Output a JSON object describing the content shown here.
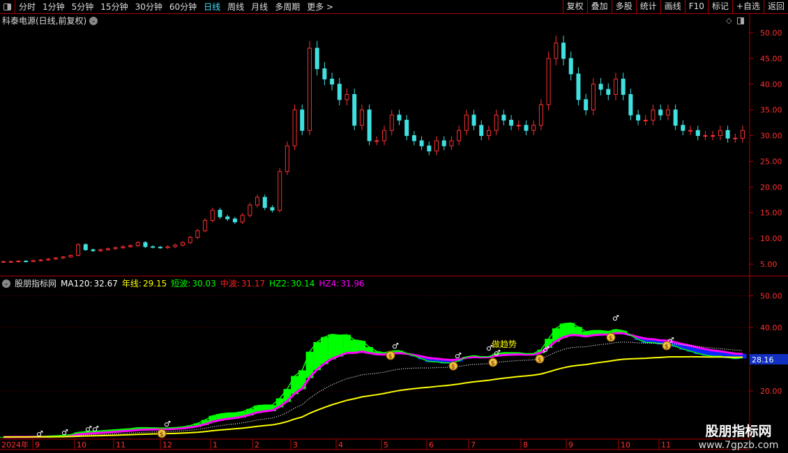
{
  "toolbar": {
    "periods": [
      "分时",
      "1分钟",
      "5分钟",
      "15分钟",
      "30分钟",
      "60分钟",
      "日线",
      "周线",
      "月线",
      "多周期",
      "更多 >"
    ],
    "active_period": "日线",
    "actions": [
      "复权",
      "叠加",
      "多股",
      "统计",
      "画线",
      "F10",
      "标记",
      "+自选",
      "返回"
    ]
  },
  "chart_title": "科泰电源(日线,前复权)",
  "price_axis": {
    "ticks": [
      "50.00",
      "45.00",
      "40.00",
      "35.00",
      "30.00",
      "25.00",
      "20.00",
      "15.00",
      "10.00",
      "5.00"
    ]
  },
  "indicator": {
    "name": "股朋指标网",
    "values": [
      {
        "label": "MA120:",
        "value": "32.67",
        "color": "#ffffff"
      },
      {
        "label": "年线:",
        "value": "29.15",
        "color": "#ffff00"
      },
      {
        "label": "短波:",
        "value": "30.03",
        "color": "#00ff00"
      },
      {
        "label": "中波:",
        "value": "31.17",
        "color": "#ff2020"
      },
      {
        "label": "HZ2:",
        "value": "30.14",
        "color": "#00ff00"
      },
      {
        "label": "HZ4:",
        "value": "31.96",
        "color": "#ff00ff"
      }
    ],
    "axis_ticks": [
      "50.00",
      "40.00",
      "20.00"
    ],
    "current_value": "28.16",
    "annotation": "做趋势"
  },
  "date_axis": [
    "2024年",
    "9",
    "10",
    "11",
    "12",
    "1",
    "2",
    "3",
    "4",
    "5",
    "6",
    "7",
    "8",
    "9",
    "10",
    "11"
  ],
  "colors": {
    "up": "#ff3030",
    "down": "#40e0e0",
    "frame": "#b00000",
    "yearline": "#ffff00",
    "short": "#00ff00",
    "mid": "#ff00ff",
    "below": "#0a28ff"
  },
  "closes": [
    5.5,
    5.5,
    5.6,
    5.5,
    5.7,
    5.8,
    6.0,
    6.2,
    6.4,
    6.7,
    8.8,
    7.8,
    7.6,
    7.8,
    8.0,
    8.2,
    8.4,
    8.6,
    9.2,
    8.4,
    8.3,
    8.2,
    8.4,
    8.7,
    9.2,
    10.2,
    11.5,
    13.5,
    15.5,
    14.2,
    13.8,
    13.2,
    14.5,
    16.5,
    18.0,
    16.0,
    15.5,
    23.0,
    28.0,
    35.0,
    31.0,
    47.0,
    43.0,
    41.0,
    40.0,
    37.0,
    38.0,
    32.0,
    35.0,
    29.0,
    29.0,
    31.0,
    34.0,
    33.0,
    30.0,
    29.0,
    28.0,
    27.0,
    29.0,
    28.0,
    29.0,
    31.0,
    34.0,
    32.0,
    30.0,
    31.0,
    34.0,
    33.0,
    32.0,
    32.0,
    31.0,
    32.0,
    36.0,
    45.0,
    48.0,
    45.0,
    42.0,
    37.0,
    35.0,
    40.0,
    39.0,
    38.0,
    41.0,
    38.0,
    34.0,
    33.0,
    33.0,
    35.0,
    34.0,
    35.0,
    32.0,
    31.0,
    31.0,
    30.0,
    30.0,
    30.0,
    31.0,
    29.5,
    29.5,
    31.0
  ],
  "watermark": {
    "name": "股朋指标网",
    "url": "www.7gpzb.com"
  }
}
